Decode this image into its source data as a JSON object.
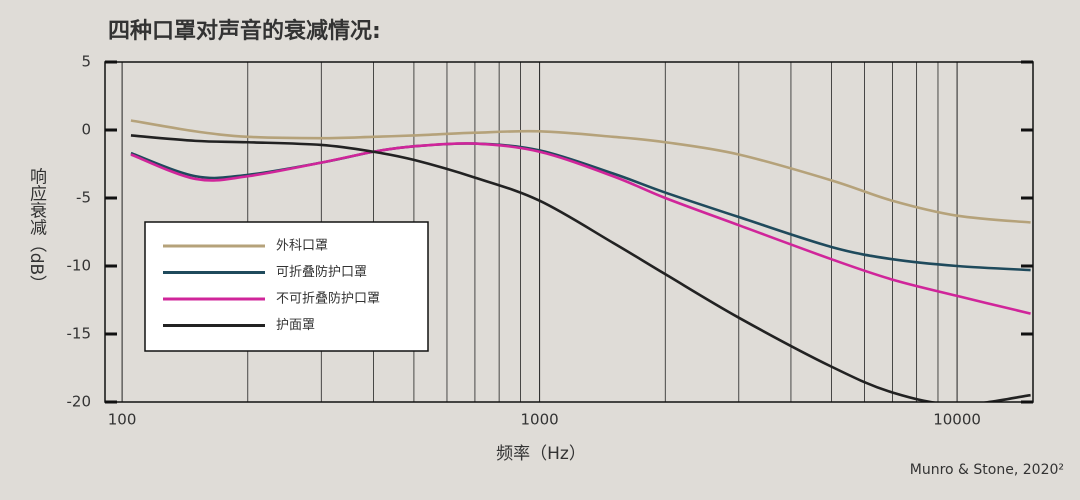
{
  "chart_data": {
    "type": "line",
    "title": "四种口罩对声音的衰减情况:",
    "x_label": "频率（Hz）",
    "y_label": "响应衰减（dB）",
    "source": "Munro & Stone, 2020²",
    "log_x": true,
    "grid": true,
    "xlim": [
      91,
      15200
    ],
    "ylim": [
      -20,
      5
    ],
    "xticks": [
      100,
      1000,
      10000
    ],
    "yticks": [
      5,
      0,
      -5,
      -10,
      -15,
      -20
    ],
    "legend": "lower left",
    "x": [
      105,
      150,
      200,
      300,
      400,
      500,
      700,
      1000,
      1500,
      2000,
      3000,
      5000,
      7000,
      10000,
      15000
    ],
    "series": [
      {
        "name": "外科口罩",
        "color": "#b5a27a",
        "values": [
          0.7,
          -0.1,
          -0.5,
          -0.6,
          -0.5,
          -0.4,
          -0.2,
          -0.1,
          -0.5,
          -0.9,
          -1.8,
          -3.7,
          -5.2,
          -6.3,
          -6.8
        ]
      },
      {
        "name": "可折叠防护口罩",
        "color": "#1f4a5c",
        "values": [
          -1.7,
          -3.4,
          -3.3,
          -2.4,
          -1.6,
          -1.2,
          -1.0,
          -1.5,
          -3.2,
          -4.6,
          -6.4,
          -8.6,
          -9.5,
          -10.0,
          -10.3
        ]
      },
      {
        "name": "不可折叠防护口罩",
        "color": "#d0259a",
        "values": [
          -1.8,
          -3.6,
          -3.4,
          -2.4,
          -1.6,
          -1.2,
          -1.0,
          -1.6,
          -3.4,
          -5.0,
          -7.0,
          -9.5,
          -11.0,
          -12.2,
          -13.5
        ]
      },
      {
        "name": "护面罩",
        "color": "#222222",
        "values": [
          -0.4,
          -0.8,
          -0.9,
          -1.1,
          -1.6,
          -2.2,
          -3.5,
          -5.2,
          -8.3,
          -10.6,
          -13.8,
          -17.4,
          -19.3,
          -20.2,
          -19.5
        ]
      }
    ]
  }
}
